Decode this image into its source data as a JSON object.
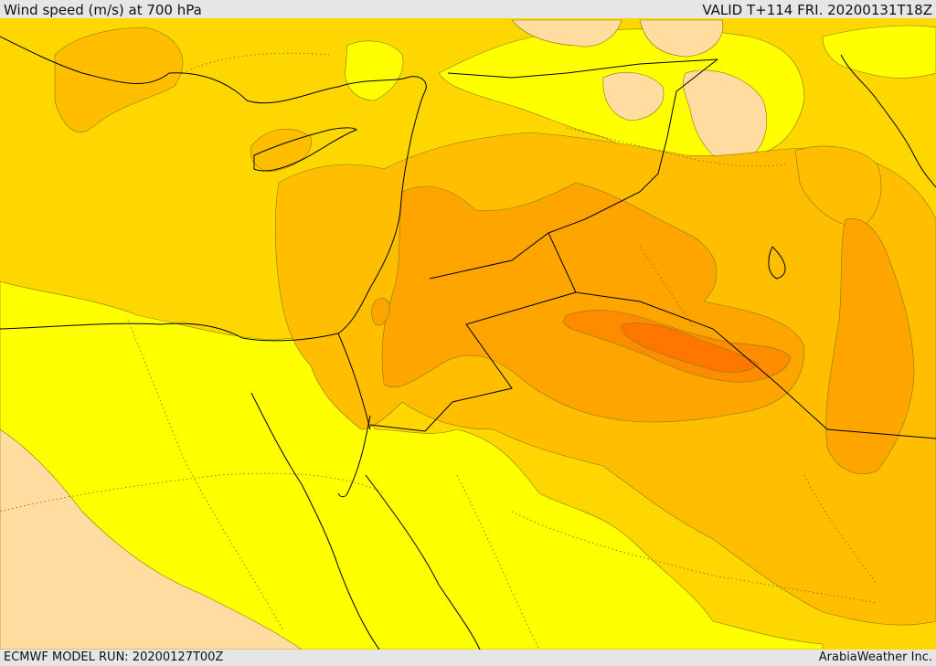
{
  "header": {
    "title": "Wind speed (m/s) at 700 hPa",
    "valid": "VALID T+114 FRI. 20200131T18Z"
  },
  "footer": {
    "model_run": "ECMWF MODEL RUN: 20200127T00Z",
    "credit": "ArabiaWeather Inc."
  },
  "palette": {
    "band_0": "#ffdda0",
    "band_1": "#ffff00",
    "band_2": "#ffd700",
    "band_3": "#ffbf00",
    "band_4": "#ffa500",
    "band_5": "#ff8c00",
    "band_6": "#ff7700",
    "borders": "#000000"
  }
}
